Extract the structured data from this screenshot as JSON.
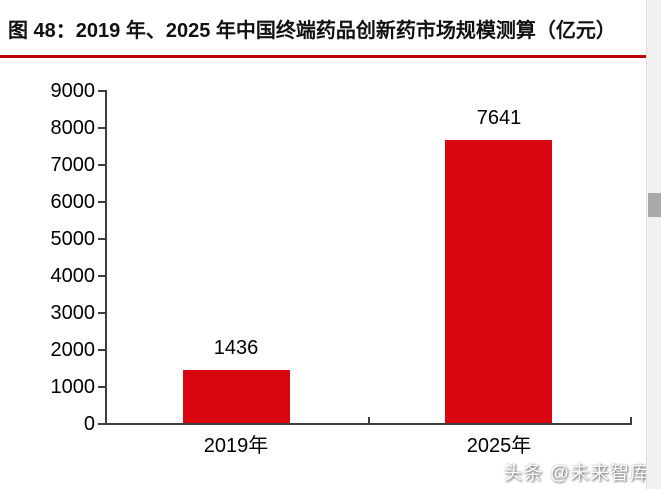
{
  "header": {
    "title": "图 48：2019 年、2025 年中国终端药品创新药市场规模测算（亿元）",
    "underline_color": "#c00000"
  },
  "chart_data": {
    "type": "bar",
    "title": "图 48：2019 年、2025 年中国终端药品创新药市场规模测算（亿元）",
    "categories": [
      "2019年",
      "2025年"
    ],
    "values": [
      1436,
      7641
    ],
    "data_labels": [
      "1436",
      "7641"
    ],
    "ylim": [
      0,
      9000
    ],
    "ytick_interval": 1000,
    "ytick_labels": [
      "0",
      "1000",
      "2000",
      "3000",
      "4000",
      "5000",
      "6000",
      "7000",
      "8000",
      "9000"
    ],
    "bar_color": "#d90511",
    "axis_color": "#3f3f3f",
    "label_color": "#000000",
    "grid": false,
    "legend": false,
    "xlabel": "",
    "ylabel": ""
  },
  "watermark": {
    "text": "头条 @未来智库"
  }
}
